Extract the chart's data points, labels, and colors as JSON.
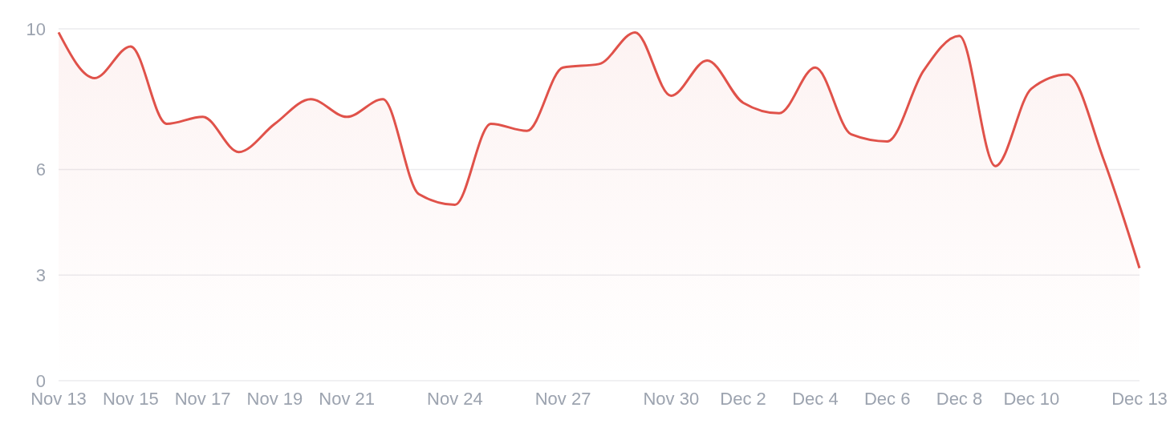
{
  "chart_data": {
    "type": "area",
    "categories": [
      "Nov 13",
      null,
      "Nov 15",
      null,
      "Nov 17",
      null,
      "Nov 19",
      null,
      "Nov 21",
      null,
      null,
      "Nov 24",
      null,
      null,
      "Nov 27",
      null,
      null,
      "Nov 30",
      null,
      "Dec 2",
      null,
      "Dec 4",
      null,
      "Dec 6",
      null,
      "Dec 8",
      null,
      "Dec 10",
      null,
      null,
      "Dec 13"
    ],
    "series": [
      {
        "color": "#e0524a",
        "values": [
          9.9,
          8.6,
          9.5,
          7.3,
          7.5,
          6.5,
          7.3,
          8.0,
          7.5,
          8.0,
          5.3,
          5.0,
          7.3,
          7.1,
          8.9,
          9.0,
          9.9,
          8.1,
          9.1,
          7.9,
          7.6,
          8.9,
          7.0,
          6.8,
          8.8,
          9.8,
          6.1,
          8.3,
          8.7,
          6.3,
          3.2
        ]
      }
    ],
    "ylim": [
      0,
      10
    ],
    "yticks": [
      0,
      3,
      6,
      10
    ],
    "grid": "y",
    "line_style": "solid"
  }
}
